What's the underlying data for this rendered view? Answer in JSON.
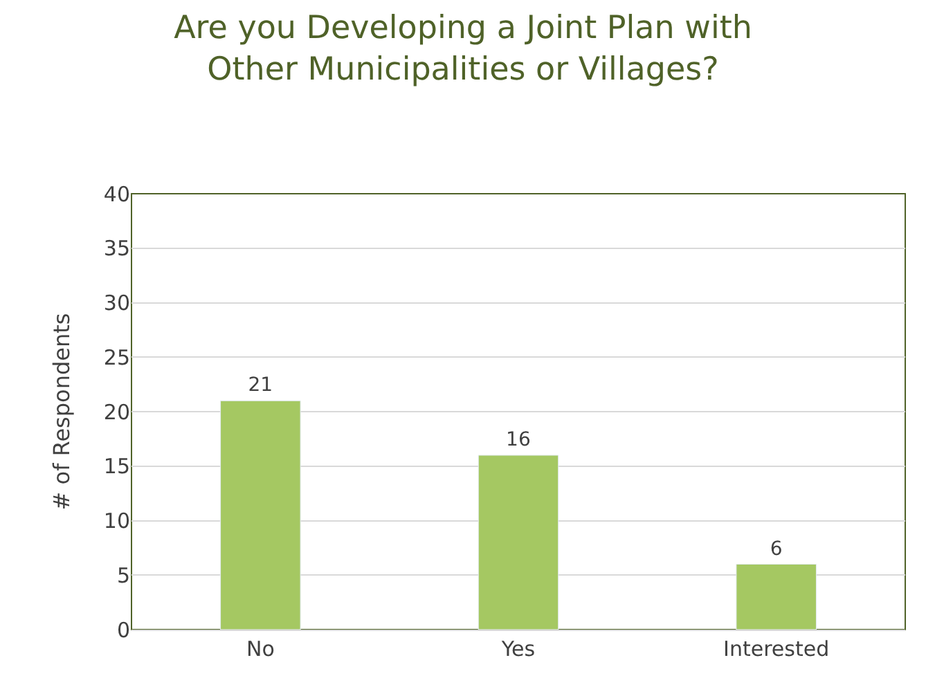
{
  "chart_data": {
    "type": "bar",
    "title": "Are you Developing a Joint Plan with\nOther Municipalities or Villages?",
    "ylabel": "# of Respondents",
    "categories": [
      "No",
      "Yes",
      "Interested"
    ],
    "values": [
      21,
      16,
      6
    ],
    "color": "#a5c862",
    "ylim": [
      0,
      40
    ],
    "yticks": [
      0,
      5,
      10,
      15,
      20,
      25,
      30,
      35,
      40
    ],
    "grid": "y",
    "data_labels": true,
    "legend": false
  }
}
